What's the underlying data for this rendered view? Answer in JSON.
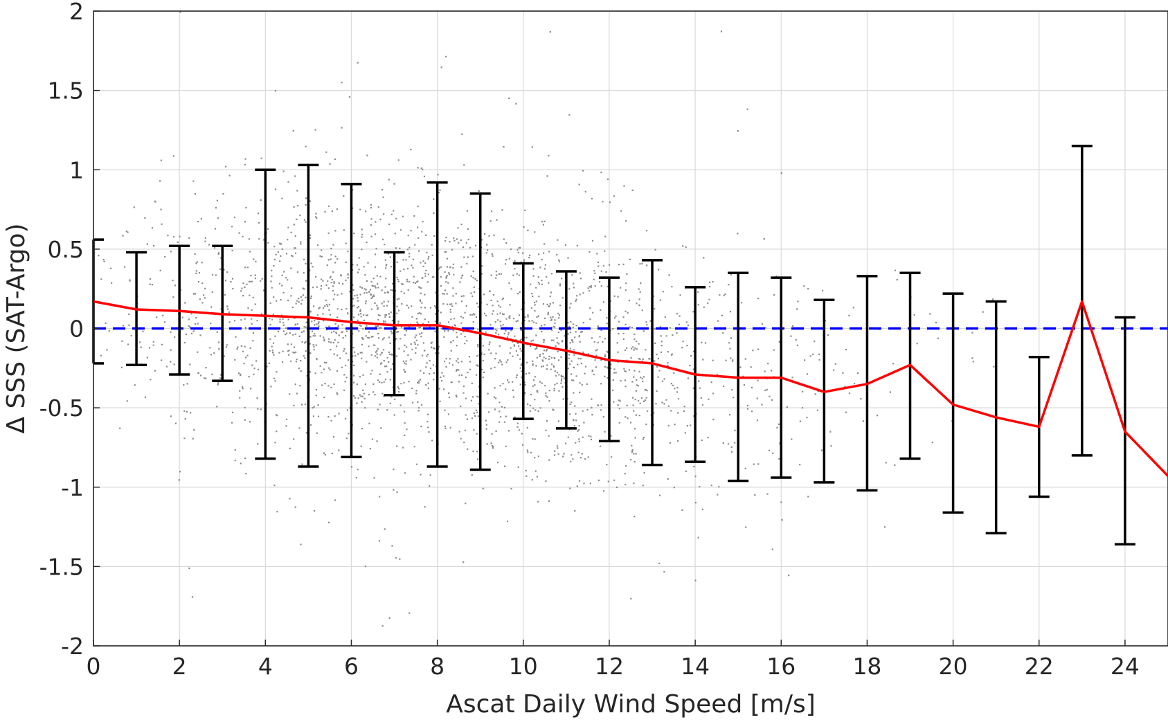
{
  "chart_data": {
    "type": "scatter",
    "title": "",
    "xlabel": "Ascat Daily Wind Speed [m/s]",
    "ylabel": "Δ SSS (SAT-Argo)",
    "xlim": [
      0,
      25
    ],
    "ylim": [
      -2,
      2
    ],
    "grid": true,
    "x_ticks": [
      0,
      2,
      4,
      6,
      8,
      10,
      12,
      14,
      16,
      18,
      20,
      22,
      24
    ],
    "x_tick_labels": [
      "0",
      "2",
      "4",
      "6",
      "8",
      "10",
      "12",
      "14",
      "16",
      "18",
      "20",
      "22",
      "24"
    ],
    "y_ticks": [
      2,
      1.5,
      1,
      0.5,
      0,
      -0.5,
      -1,
      -1.5,
      -2
    ],
    "y_tick_labels": [
      "2",
      "1.5",
      "1",
      "0.5",
      "0",
      "-0.5",
      "-1",
      "-1.5",
      "-2"
    ],
    "series": [
      {
        "kind": "scatter",
        "color": "#808080",
        "description_values": "dense cloud of individual matchup points"
      },
      {
        "kind": "line",
        "color": "#ff0000",
        "x": [
          0,
          1,
          2,
          3,
          4,
          5,
          6,
          7,
          8,
          9,
          10,
          11,
          12,
          13,
          14,
          15,
          16,
          17,
          18,
          19,
          20,
          21,
          22,
          23,
          24,
          25
        ],
        "y": [
          0.17,
          0.12,
          0.11,
          0.09,
          0.08,
          0.07,
          0.04,
          0.02,
          0.02,
          -0.03,
          -0.09,
          -0.14,
          -0.2,
          -0.22,
          -0.29,
          -0.31,
          -0.31,
          -0.4,
          -0.35,
          -0.23,
          -0.48,
          -0.56,
          -0.62,
          0.17,
          -0.65,
          -0.93
        ]
      },
      {
        "kind": "errorbar",
        "color": "#000000",
        "x": [
          0,
          1,
          2,
          3,
          4,
          5,
          6,
          7,
          8,
          9,
          10,
          11,
          12,
          13,
          14,
          15,
          16,
          17,
          18,
          19,
          20,
          21,
          22,
          23,
          24
        ],
        "upper": [
          0.56,
          0.48,
          0.52,
          0.52,
          1.0,
          1.03,
          0.91,
          0.48,
          0.92,
          0.85,
          0.41,
          0.36,
          0.32,
          0.43,
          0.26,
          0.35,
          0.32,
          0.18,
          0.33,
          0.35,
          0.22,
          0.17,
          -0.18,
          1.15,
          0.07
        ],
        "lower": [
          -0.22,
          -0.23,
          -0.29,
          -0.33,
          -0.82,
          -0.87,
          -0.81,
          -0.42,
          -0.87,
          -0.89,
          -0.57,
          -0.63,
          -0.71,
          -0.86,
          -0.84,
          -0.96,
          -0.94,
          -0.97,
          -1.02,
          -0.82,
          -1.16,
          -1.29,
          -1.06,
          -0.8,
          -1.36
        ]
      },
      {
        "kind": "reference-line",
        "color": "#0000ff",
        "style": "dashed",
        "y": 0
      }
    ]
  }
}
